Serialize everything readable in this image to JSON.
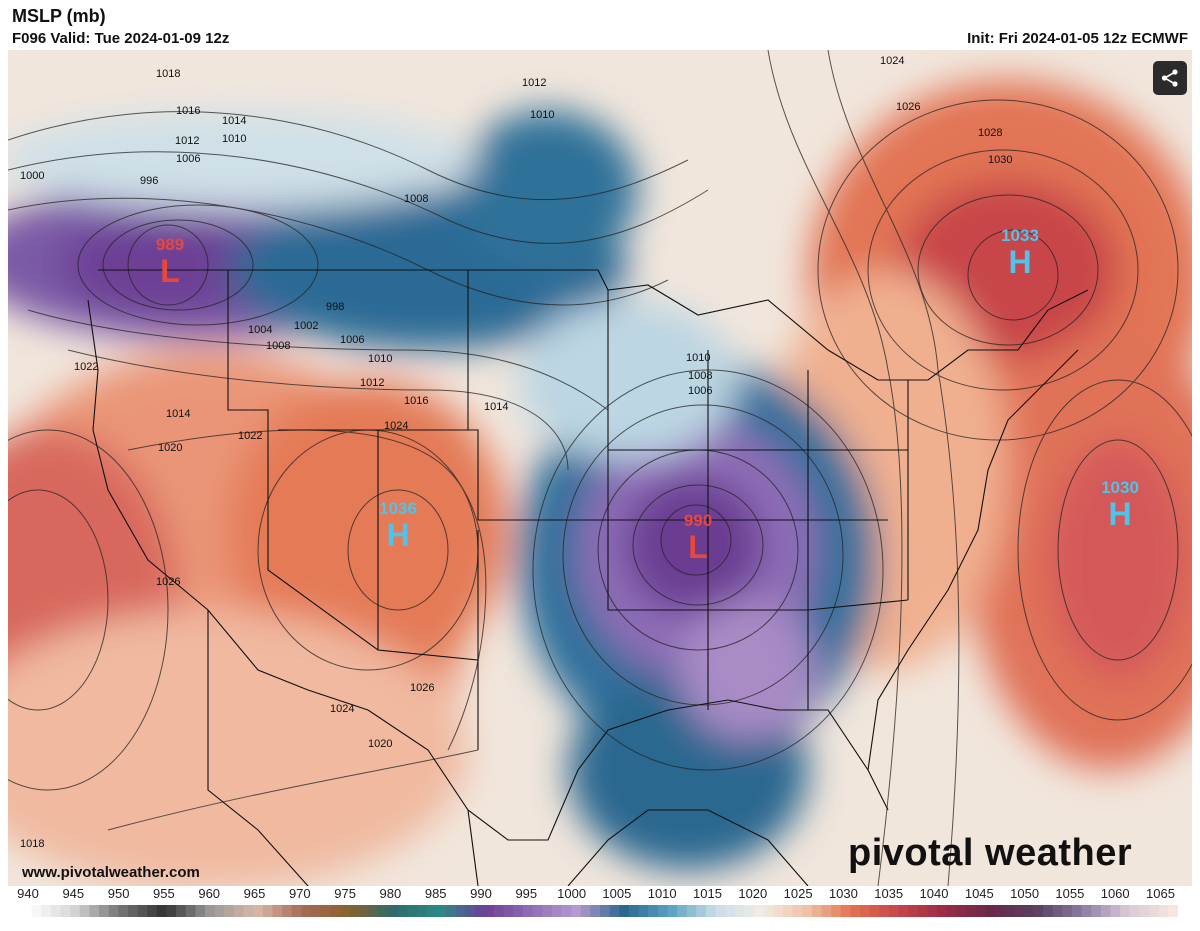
{
  "header": {
    "title": "MSLP (mb)",
    "valid": "F096 Valid: Tue 2024-01-09 12z",
    "init": "Init: Fri 2024-01-05 12z ECMWF"
  },
  "centers": [
    {
      "type": "L",
      "value": "989"
    },
    {
      "type": "H",
      "value": "1036"
    },
    {
      "type": "L",
      "value": "990"
    },
    {
      "type": "H",
      "value": "1033"
    },
    {
      "type": "H",
      "value": "1030"
    }
  ],
  "isobar_labels": [
    "1018",
    "1016",
    "1014",
    "1012",
    "1010",
    "1006",
    "1000",
    "996",
    "1008",
    "1012",
    "1010",
    "1024",
    "1026",
    "1028",
    "1030",
    "998",
    "1004",
    "1002",
    "1006",
    "1008",
    "1010",
    "1012",
    "1014",
    "1016",
    "1014",
    "1010",
    "1008",
    "1006",
    "1020",
    "1022",
    "1024",
    "1026",
    "1026",
    "1024",
    "1020",
    "1018",
    "1022"
  ],
  "colors": {
    "low": "#6e3f96",
    "low_mid": "#1e5f8a",
    "neutral": "#f3efe9",
    "high": "#e2714f",
    "high_strong": "#b9383e",
    "low_label": "#e8473c",
    "high_label": "#4fc3ea"
  },
  "credit": "www.pivotalweather.com",
  "brand": "pivotal weather",
  "share_icon": "share-icon",
  "scale": {
    "labels": [
      "940",
      "945",
      "950",
      "955",
      "960",
      "965",
      "970",
      "975",
      "980",
      "985",
      "990",
      "995",
      "1000",
      "1005",
      "1010",
      "1015",
      "1020",
      "1025",
      "1030",
      "1035",
      "1040",
      "1045",
      "1050",
      "1055",
      "1060",
      "1065"
    ]
  }
}
